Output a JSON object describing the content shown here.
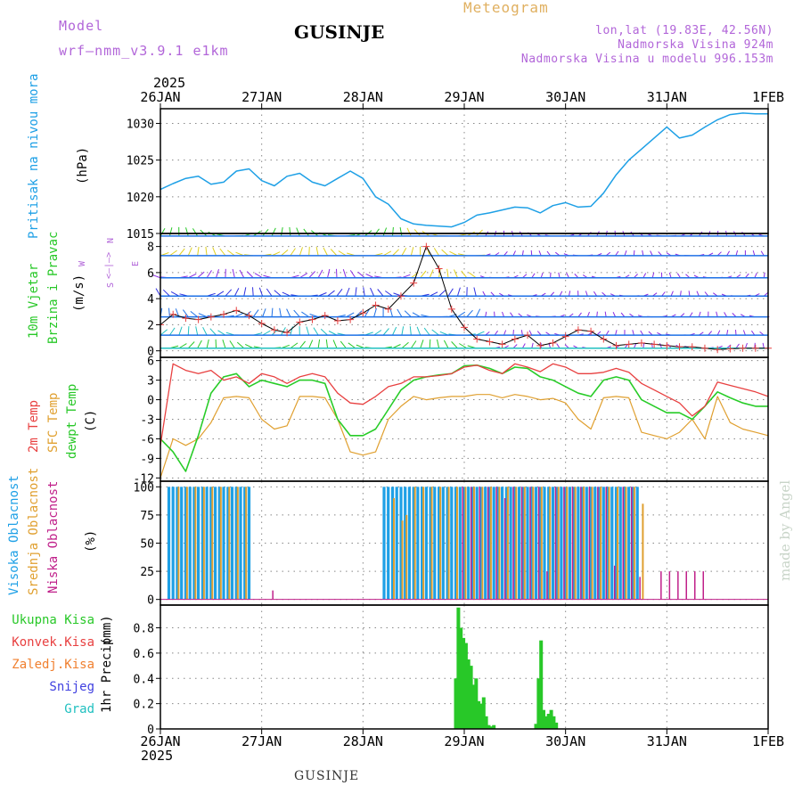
{
  "header": {
    "model_label": "Model",
    "model_name": "wrf—nmm_v3.9.1 e1km",
    "product": "Meteogram",
    "station": "GUSINJE",
    "coords": "lon,lat (19.83E, 42.56N)",
    "elevation": "Nadmorska Visina 924m",
    "model_elevation": "Nadmorska Visina u modelu 996.153m"
  },
  "footer": {
    "station": "GUSINJE",
    "credit": "made by Angel"
  },
  "colors": {
    "pressure": "#1ea0e6",
    "temp2m": "#e84040",
    "sfc": "#e0a030",
    "dewpt": "#28cc28",
    "cloud_high": "#1ea0e6",
    "cloud_mid": "#e0a030",
    "cloud_low": "#c0208a",
    "precip_total": "#28c828",
    "precip_conv": "#e84040",
    "precip_frz": "#f08030",
    "snow": "#4040e0",
    "hail": "#20c0c0",
    "model": "#b266d9"
  },
  "chart_data": {
    "type": "line",
    "x_axis": {
      "year": "2025",
      "ticks": [
        "26JAN",
        "27JAN",
        "28JAN",
        "29JAN",
        "30JAN",
        "31JAN",
        "1FEB"
      ],
      "range_hours": [
        0,
        144
      ]
    },
    "panels": [
      {
        "id": "pressure",
        "ylabel": "Pritisak na nivou mora",
        "unit": "(hPa)",
        "ylim": [
          1015,
          1032
        ],
        "yticks": [
          "1015",
          "1020",
          "1025",
          "1030"
        ],
        "series": [
          {
            "name": "Pritisak na nivou mora",
            "x": [
              0,
              3,
              6,
              9,
              12,
              15,
              18,
              21,
              24,
              27,
              30,
              33,
              36,
              39,
              42,
              45,
              48,
              51,
              54,
              57,
              60,
              63,
              66,
              69,
              72,
              75,
              78,
              81,
              84,
              87,
              90,
              93,
              96,
              99,
              102,
              105,
              108,
              111,
              114,
              117,
              120,
              123,
              126,
              129,
              132,
              135,
              138,
              141,
              144
            ],
            "y": [
              1021,
              1021.8,
              1022.5,
              1022.8,
              1021.7,
              1022,
              1023.5,
              1023.8,
              1022.2,
              1021.5,
              1022.8,
              1023.2,
              1022,
              1021.5,
              1022.5,
              1023.5,
              1022.5,
              1020,
              1019,
              1017,
              1016.3,
              1016.1,
              1016,
              1015.9,
              1016.5,
              1017.5,
              1017.8,
              1018.2,
              1018.6,
              1018.5,
              1017.8,
              1018.8,
              1019.2,
              1018.6,
              1018.7,
              1020.5,
              1023,
              1025,
              1026.5,
              1028,
              1029.5,
              1028,
              1028.4,
              1029.5,
              1030.5,
              1031.2,
              1031.4,
              1031.3,
              1031.3
            ]
          }
        ]
      },
      {
        "id": "wind",
        "ylabel": [
          "10m Vjetar",
          "Brzina i Pravac"
        ],
        "unit": "(m/s)",
        "ylim": [
          -0.5,
          9
        ],
        "yticks": [
          "0",
          "2",
          "4",
          "6",
          "8"
        ],
        "compass": [
          "N",
          "E",
          "S",
          "W"
        ],
        "series": [
          {
            "name": "Brzina",
            "x": [
              0,
              3,
              6,
              9,
              12,
              15,
              18,
              21,
              24,
              27,
              30,
              33,
              36,
              39,
              42,
              45,
              48,
              51,
              54,
              57,
              60,
              63,
              66,
              69,
              72,
              75,
              78,
              81,
              84,
              87,
              90,
              93,
              96,
              99,
              102,
              105,
              108,
              111,
              114,
              117,
              120,
              123,
              126,
              129,
              132,
              135,
              138,
              141,
              144
            ],
            "y": [
              2,
              2.8,
              2.5,
              2.4,
              2.6,
              2.8,
              3.1,
              2.7,
              2.1,
              1.6,
              1.4,
              2.2,
              2.4,
              2.7,
              2.3,
              2.4,
              2.9,
              3.5,
              3.2,
              4.2,
              5.2,
              8,
              6.3,
              3.2,
              1.8,
              0.9,
              0.7,
              0.5,
              0.9,
              1.2,
              0.4,
              0.6,
              1.1,
              1.6,
              1.5,
              0.9,
              0.4,
              0.5,
              0.6,
              0.5,
              0.4,
              0.3,
              0.3,
              0.2,
              0.1,
              0.15,
              0.2,
              0.2,
              0.2
            ]
          }
        ]
      },
      {
        "id": "temperature",
        "ylabel": [
          "2m Temp",
          "SFC Temp",
          "dewpt Temp"
        ],
        "unit": "(C)",
        "ylim": [
          -12.5,
          6.5
        ],
        "yticks": [
          "-12",
          "-9",
          "-6",
          "-3",
          "0",
          "3",
          "6"
        ],
        "series": [
          {
            "name": "2m Temp",
            "x": [
              0,
              3,
              6,
              9,
              12,
              15,
              18,
              21,
              24,
              27,
              30,
              33,
              36,
              39,
              42,
              45,
              48,
              51,
              54,
              57,
              60,
              63,
              66,
              69,
              72,
              75,
              78,
              81,
              84,
              87,
              90,
              93,
              96,
              99,
              102,
              105,
              108,
              111,
              114,
              117,
              120,
              123,
              126,
              129,
              132,
              135,
              138,
              141,
              144
            ],
            "y": [
              -7,
              5.5,
              4.5,
              4,
              4.5,
              3,
              3.5,
              2.5,
              4,
              3.5,
              2.5,
              3.5,
              4,
              3.5,
              1,
              -0.5,
              -0.7,
              0.5,
              2,
              2.5,
              3.5,
              3.5,
              3.7,
              4,
              5,
              5.3,
              4.5,
              4,
              5.5,
              5,
              4.3,
              5.5,
              5,
              4,
              4,
              4.2,
              4.8,
              4.2,
              2.5,
              1.5,
              0.5,
              -0.5,
              -2.5,
              -1,
              2.7,
              2.2,
              1.7,
              1.2,
              0.5
            ]
          },
          {
            "name": "SFC Temp",
            "x": [
              0,
              3,
              6,
              9,
              12,
              15,
              18,
              21,
              24,
              27,
              30,
              33,
              36,
              39,
              42,
              45,
              48,
              51,
              54,
              57,
              60,
              63,
              66,
              69,
              72,
              75,
              78,
              81,
              84,
              87,
              90,
              93,
              96,
              99,
              102,
              105,
              108,
              111,
              114,
              117,
              120,
              123,
              126,
              129,
              132,
              135,
              138,
              141,
              144
            ],
            "y": [
              -12,
              -6,
              -7,
              -6,
              -3.5,
              0.3,
              0.5,
              0.3,
              -3,
              -4.5,
              -4,
              0.5,
              0.5,
              0.3,
              -3,
              -8,
              -8.5,
              -8,
              -3,
              -1,
              0.5,
              0,
              0.3,
              0.5,
              0.5,
              0.8,
              0.8,
              0.3,
              0.8,
              0.5,
              0,
              0.2,
              -0.5,
              -3,
              -4.5,
              0.3,
              0.5,
              0.3,
              -5,
              -5.5,
              -6,
              -5,
              -3,
              -6,
              0.5,
              -3.5,
              -4.5,
              -5,
              -5.5
            ]
          },
          {
            "name": "dewpt Temp",
            "x": [
              0,
              3,
              6,
              9,
              12,
              15,
              18,
              21,
              24,
              27,
              30,
              33,
              36,
              39,
              42,
              45,
              48,
              51,
              54,
              57,
              60,
              63,
              66,
              69,
              72,
              75,
              78,
              81,
              84,
              87,
              90,
              93,
              96,
              99,
              102,
              105,
              108,
              111,
              114,
              117,
              120,
              123,
              126,
              129,
              132,
              135,
              138,
              141,
              144
            ],
            "y": [
              -6,
              -8,
              -11,
              -5.5,
              1,
              3.5,
              4,
              2,
              3,
              2.5,
              2,
              3,
              3,
              2.5,
              -3,
              -5.5,
              -5.5,
              -4.5,
              -1.5,
              1.5,
              3,
              3.5,
              3.8,
              4,
              5.2,
              5.3,
              4.8,
              4,
              5,
              4.8,
              3.5,
              3,
              2,
              1,
              0.5,
              3,
              3.5,
              3,
              0,
              -1,
              -2,
              -2,
              -3,
              -1,
              1.2,
              0.3,
              -0.5,
              -1,
              -1
            ]
          }
        ]
      },
      {
        "id": "clouds",
        "ylabel": [
          "Visoka Oblacnost",
          "Srednja Oblacnost",
          "Niska Oblacnost"
        ],
        "unit": "(%)",
        "ylim": [
          -5,
          105
        ],
        "yticks": [
          "0",
          "25",
          "50",
          "75",
          "100"
        ],
        "series": [
          {
            "name": "Visoka Oblacnost",
            "x": [
              2,
              3,
              4,
              5,
              6,
              7,
              8,
              9,
              10,
              11,
              12,
              13,
              14,
              15,
              16,
              17,
              18,
              19,
              20,
              21,
              53,
              54,
              55,
              56,
              57,
              58,
              59,
              60,
              61,
              62,
              63,
              64,
              65,
              66,
              67,
              68,
              69,
              70,
              71,
              72,
              73,
              74,
              75,
              76,
              77,
              78,
              79,
              80,
              81,
              82,
              83,
              84,
              85,
              86,
              87,
              88,
              89,
              90,
              91,
              92,
              93,
              94,
              95,
              96,
              97,
              98,
              99,
              100,
              101,
              102,
              103,
              104,
              105,
              106,
              107,
              108,
              109,
              110,
              111,
              112,
              113
            ],
            "y": [
              100,
              100,
              100,
              100,
              100,
              100,
              100,
              100,
              100,
              100,
              100,
              100,
              100,
              100,
              100,
              100,
              100,
              100,
              100,
              100,
              100,
              100,
              100,
              100,
              100,
              100,
              100,
              100,
              100,
              100,
              100,
              100,
              100,
              100,
              100,
              100,
              100,
              100,
              100,
              100,
              100,
              100,
              100,
              100,
              100,
              100,
              100,
              100,
              100,
              100,
              100,
              100,
              100,
              100,
              100,
              100,
              100,
              100,
              100,
              100,
              100,
              100,
              100,
              100,
              100,
              100,
              100,
              100,
              100,
              100,
              100,
              100,
              100,
              100,
              100,
              100,
              100,
              100,
              100,
              100,
              100
            ]
          },
          {
            "name": "Srednja Oblacnost",
            "x": [
              4,
              6,
              8,
              10,
              12,
              14,
              16,
              18,
              20,
              55,
              57,
              58,
              60,
              62,
              64,
              66,
              68,
              70,
              72,
              74,
              76,
              78,
              80,
              82,
              84,
              86,
              88,
              90,
              92,
              94,
              96,
              98,
              100,
              102,
              104,
              106,
              108,
              110,
              112,
              114
            ],
            "y": [
              100,
              100,
              100,
              100,
              100,
              100,
              100,
              100,
              100,
              90,
              70,
              75,
              100,
              100,
              100,
              100,
              100,
              100,
              100,
              100,
              100,
              100,
              100,
              100,
              100,
              100,
              100,
              100,
              100,
              100,
              100,
              100,
              100,
              100,
              100,
              100,
              100,
              100,
              100,
              85
            ]
          },
          {
            "name": "Niska Oblacnost",
            "x": [
              26,
              71,
              73,
              75,
              77,
              79,
              81,
              83,
              85,
              87,
              89,
              91,
              93,
              95,
              97,
              99,
              101,
              103,
              105,
              107,
              109,
              111,
              113,
              118,
              120,
              122,
              124,
              126,
              128
            ],
            "y": [
              8,
              100,
              100,
              100,
              100,
              100,
              90,
              100,
              100,
              100,
              100,
              25,
              100,
              100,
              100,
              100,
              100,
              100,
              100,
              30,
              100,
              100,
              20,
              25,
              25,
              25,
              25,
              25,
              25
            ]
          }
        ]
      },
      {
        "id": "precip",
        "ylabel": "1hr Precip",
        "unit": "(mm)",
        "ylim": [
          0,
          0.98
        ],
        "yticks": [
          "0",
          "0.2",
          "0.4",
          "0.6",
          "0.8"
        ],
        "legend": [
          "Ukupna Kisa",
          "Konvek.Kisa",
          "Zaledj.Kisa",
          "Snijeg",
          "Grad"
        ],
        "series": [
          {
            "name": "Ukupna Kisa",
            "x": [
              70,
              70.6,
              71.2,
              71.8,
              72.4,
              73,
              73.6,
              74.2,
              74.8,
              75.4,
              76,
              76.6,
              77.2,
              77.8,
              78.4,
              79,
              89,
              89.6,
              90.2,
              90.8,
              91.4,
              92,
              92.6,
              93.2,
              93.8
            ],
            "y": [
              0.4,
              0.96,
              0.8,
              0.72,
              0.68,
              0.55,
              0.5,
              0.35,
              0.4,
              0.22,
              0.2,
              0.25,
              0.1,
              0.03,
              0.02,
              0.03,
              0.04,
              0.4,
              0.7,
              0.15,
              0.1,
              0.12,
              0.15,
              0.1,
              0.05
            ]
          }
        ]
      }
    ]
  }
}
